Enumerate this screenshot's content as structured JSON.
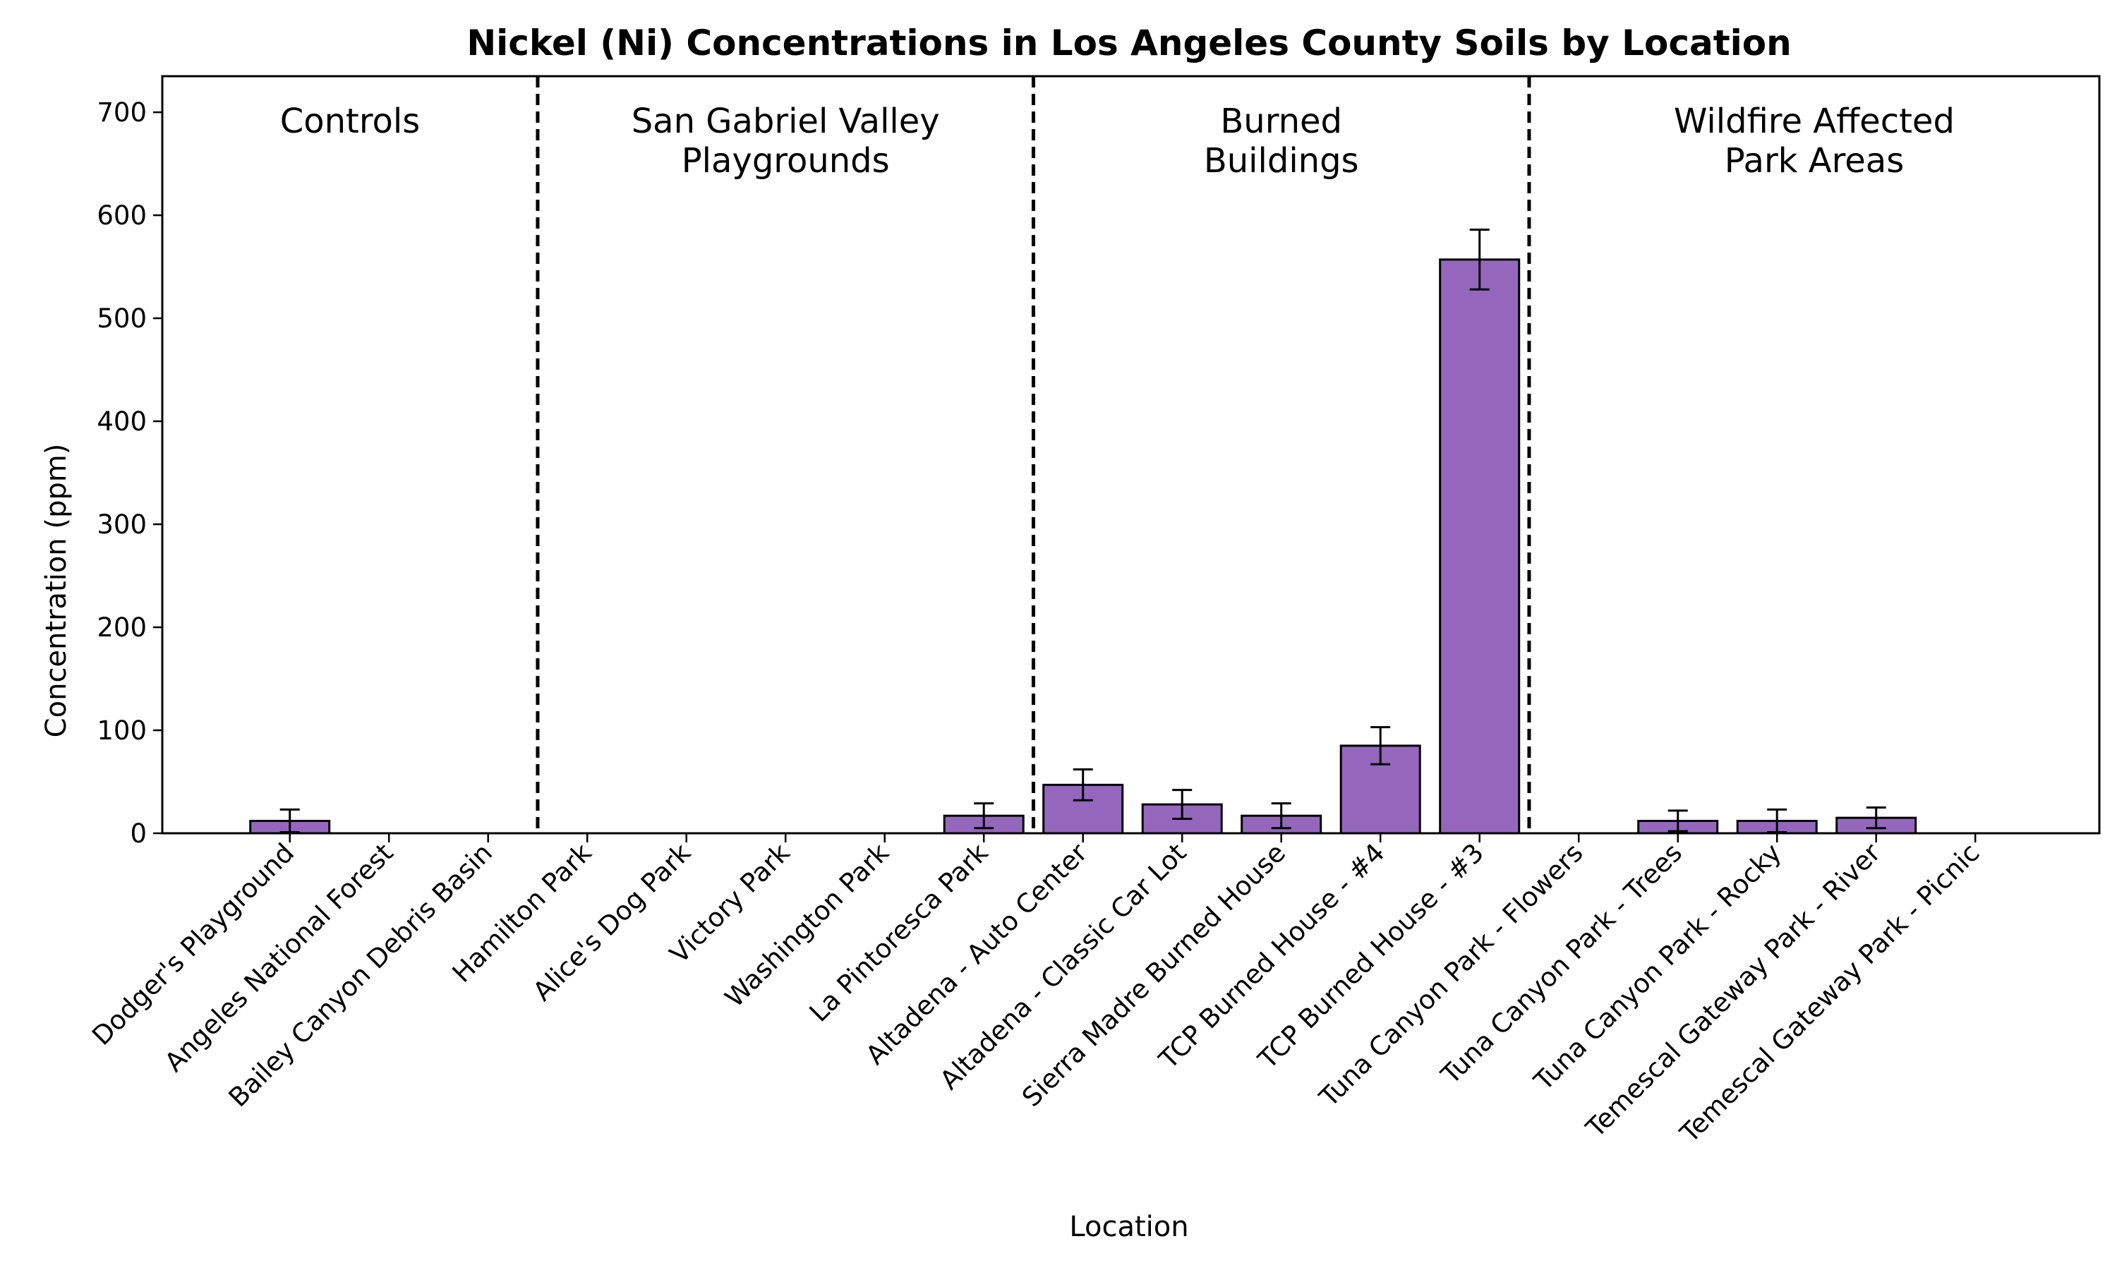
{
  "chart_data": {
    "type": "bar",
    "title": "Nickel (Ni) Concentrations in Los Angeles County Soils by Location",
    "xlabel": "Location",
    "ylabel": "Concentration (ppm)",
    "ylim": [
      0,
      735
    ],
    "yticks": [
      0,
      100,
      200,
      300,
      400,
      500,
      600,
      700
    ],
    "grid": false,
    "categories": [
      "Dodger's Playground",
      "Angeles National Forest",
      "Bailey Canyon Debris Basin",
      "Hamilton Park",
      "Alice's Dog Park",
      "Victory Park",
      "Washington Park",
      "La Pintoresca Park",
      "Altadena - Auto Center",
      "Altadena - Classic Car Lot",
      "Sierra Madre Burned House",
      "TCP Burned House - #4",
      "TCP Burned House - #3",
      "Tuna Canyon Park - Flowers",
      "Tuna Canyon Park - Trees",
      "Tuna Canyon Park - Rocky",
      "Temescal Gateway Park - River",
      "Temescal Gateway Park - Picnic"
    ],
    "values": [
      12,
      0,
      0,
      0,
      0,
      0,
      0,
      17,
      47,
      28,
      17,
      85,
      557,
      0,
      12,
      12,
      15,
      0
    ],
    "errors": [
      11,
      0,
      0,
      0,
      0,
      0,
      0,
      12,
      15,
      14,
      12,
      18,
      29,
      0,
      10,
      11,
      10,
      0
    ],
    "bar_color": "#9467bd",
    "bar_edge_color": "#000000",
    "groups": [
      {
        "label_lines": [
          "Controls"
        ],
        "start": 0,
        "end": 2
      },
      {
        "label_lines": [
          "San Gabriel Valley",
          "Playgrounds"
        ],
        "start": 3,
        "end": 7
      },
      {
        "label_lines": [
          "Burned",
          "Buildings"
        ],
        "start": 8,
        "end": 12
      },
      {
        "label_lines": [
          "Wildfire Affected",
          "Park Areas"
        ],
        "start": 13,
        "end": 17
      }
    ]
  }
}
